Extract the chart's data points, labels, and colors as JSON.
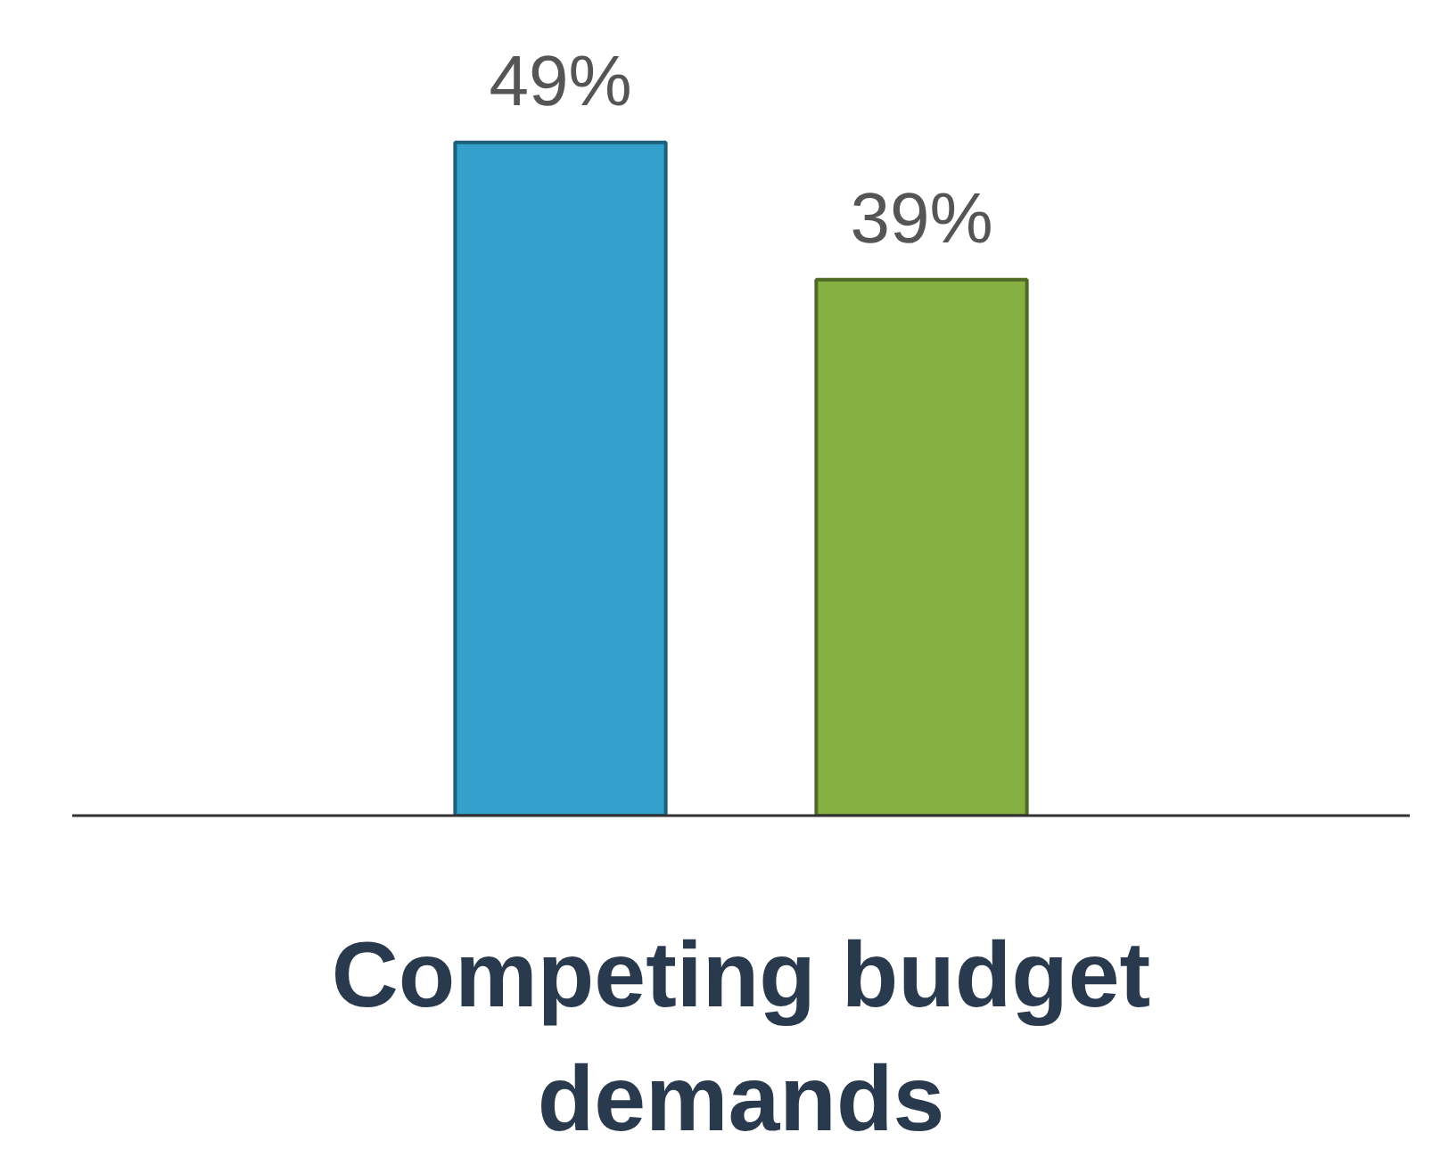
{
  "chart_data": {
    "type": "bar",
    "categories": [
      "Competing budget demands"
    ],
    "series": [
      {
        "color": "#33a1cb",
        "values": [
          49
        ],
        "value_labels": [
          "49%"
        ]
      },
      {
        "color": "#86b042",
        "values": [
          39
        ],
        "value_labels": [
          "39%"
        ]
      }
    ]
  }
}
